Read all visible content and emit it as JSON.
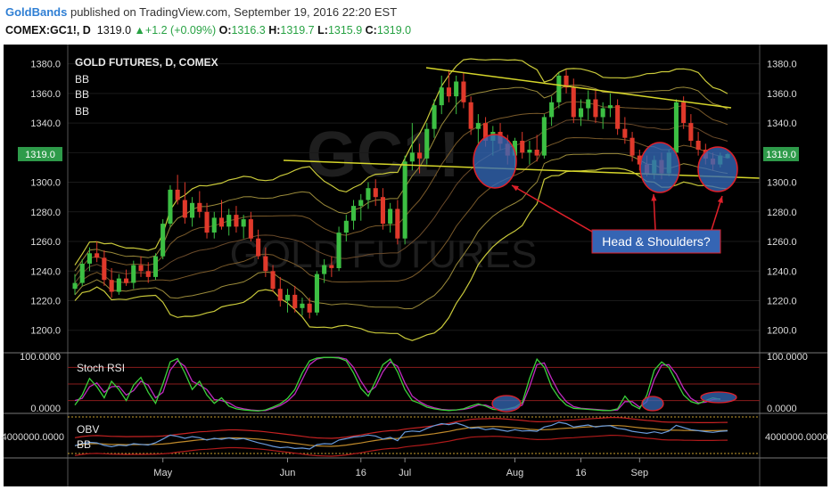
{
  "header": {
    "author": "GoldBands",
    "published": "published on TradingView.com, September 19, 2016 22:20 EST",
    "symbol": "COMEX:GC1!, D",
    "price": "1319.0",
    "change": "+1.2 (+0.09%)",
    "open_label": "O:",
    "open": "1316.3",
    "high_label": "H:",
    "high": "1319.7",
    "low_label": "L:",
    "low": "1315.9",
    "close_label": "C:",
    "close": "1319.0"
  },
  "chart_data": {
    "type": "candlestick",
    "title": "GOLD FUTURES, D, COMEX",
    "indicator_labels": [
      "BB",
      "BB",
      "BB"
    ],
    "watermark": [
      "GC1!",
      "GOLD FUTURES"
    ],
    "y_ticks": [
      1200,
      1220,
      1240,
      1260,
      1280,
      1300,
      1320,
      1340,
      1360,
      1380
    ],
    "ylim": [
      1186,
      1393
    ],
    "last_price_label": "1319.0",
    "x_ticks": [
      "May",
      "Jun",
      "16",
      "Jul",
      "Aug",
      "16",
      "Sep"
    ],
    "candles": [
      {
        "o": 1228,
        "h": 1238,
        "l": 1224,
        "c": 1232
      },
      {
        "o": 1232,
        "h": 1248,
        "l": 1230,
        "c": 1245
      },
      {
        "o": 1245,
        "h": 1256,
        "l": 1240,
        "c": 1252
      },
      {
        "o": 1252,
        "h": 1260,
        "l": 1246,
        "c": 1249
      },
      {
        "o": 1249,
        "h": 1254,
        "l": 1230,
        "c": 1234
      },
      {
        "o": 1234,
        "h": 1242,
        "l": 1222,
        "c": 1226
      },
      {
        "o": 1226,
        "h": 1238,
        "l": 1224,
        "c": 1235
      },
      {
        "o": 1235,
        "h": 1241,
        "l": 1230,
        "c": 1232
      },
      {
        "o": 1232,
        "h": 1247,
        "l": 1228,
        "c": 1244
      },
      {
        "o": 1244,
        "h": 1250,
        "l": 1236,
        "c": 1240
      },
      {
        "o": 1240,
        "h": 1246,
        "l": 1232,
        "c": 1236
      },
      {
        "o": 1236,
        "h": 1252,
        "l": 1234,
        "c": 1250
      },
      {
        "o": 1250,
        "h": 1275,
        "l": 1248,
        "c": 1272
      },
      {
        "o": 1272,
        "h": 1298,
        "l": 1270,
        "c": 1295
      },
      {
        "o": 1295,
        "h": 1305,
        "l": 1285,
        "c": 1288
      },
      {
        "o": 1288,
        "h": 1300,
        "l": 1272,
        "c": 1276
      },
      {
        "o": 1276,
        "h": 1290,
        "l": 1270,
        "c": 1286
      },
      {
        "o": 1286,
        "h": 1294,
        "l": 1276,
        "c": 1280
      },
      {
        "o": 1280,
        "h": 1286,
        "l": 1262,
        "c": 1266
      },
      {
        "o": 1266,
        "h": 1280,
        "l": 1262,
        "c": 1276
      },
      {
        "o": 1276,
        "h": 1288,
        "l": 1268,
        "c": 1270
      },
      {
        "o": 1270,
        "h": 1282,
        "l": 1264,
        "c": 1278
      },
      {
        "o": 1278,
        "h": 1284,
        "l": 1266,
        "c": 1270
      },
      {
        "o": 1270,
        "h": 1278,
        "l": 1262,
        "c": 1275
      },
      {
        "o": 1275,
        "h": 1280,
        "l": 1260,
        "c": 1262
      },
      {
        "o": 1262,
        "h": 1268,
        "l": 1248,
        "c": 1250
      },
      {
        "o": 1250,
        "h": 1256,
        "l": 1236,
        "c": 1240
      },
      {
        "o": 1240,
        "h": 1244,
        "l": 1226,
        "c": 1228
      },
      {
        "o": 1228,
        "h": 1236,
        "l": 1216,
        "c": 1220
      },
      {
        "o": 1220,
        "h": 1228,
        "l": 1212,
        "c": 1224
      },
      {
        "o": 1224,
        "h": 1230,
        "l": 1212,
        "c": 1215
      },
      {
        "o": 1215,
        "h": 1222,
        "l": 1210,
        "c": 1218
      },
      {
        "o": 1218,
        "h": 1222,
        "l": 1208,
        "c": 1212
      },
      {
        "o": 1212,
        "h": 1240,
        "l": 1210,
        "c": 1238
      },
      {
        "o": 1238,
        "h": 1248,
        "l": 1232,
        "c": 1244
      },
      {
        "o": 1244,
        "h": 1250,
        "l": 1236,
        "c": 1242
      },
      {
        "o": 1242,
        "h": 1270,
        "l": 1240,
        "c": 1266
      },
      {
        "o": 1266,
        "h": 1278,
        "l": 1260,
        "c": 1274
      },
      {
        "o": 1274,
        "h": 1288,
        "l": 1268,
        "c": 1284
      },
      {
        "o": 1284,
        "h": 1292,
        "l": 1274,
        "c": 1288
      },
      {
        "o": 1288,
        "h": 1300,
        "l": 1282,
        "c": 1296
      },
      {
        "o": 1296,
        "h": 1302,
        "l": 1284,
        "c": 1290
      },
      {
        "o": 1290,
        "h": 1296,
        "l": 1268,
        "c": 1272
      },
      {
        "o": 1272,
        "h": 1286,
        "l": 1266,
        "c": 1282
      },
      {
        "o": 1282,
        "h": 1288,
        "l": 1258,
        "c": 1262
      },
      {
        "o": 1262,
        "h": 1318,
        "l": 1258,
        "c": 1314
      },
      {
        "o": 1314,
        "h": 1340,
        "l": 1308,
        "c": 1320
      },
      {
        "o": 1320,
        "h": 1326,
        "l": 1306,
        "c": 1316
      },
      {
        "o": 1316,
        "h": 1340,
        "l": 1312,
        "c": 1336
      },
      {
        "o": 1336,
        "h": 1356,
        "l": 1330,
        "c": 1352
      },
      {
        "o": 1352,
        "h": 1372,
        "l": 1346,
        "c": 1364
      },
      {
        "o": 1364,
        "h": 1376,
        "l": 1354,
        "c": 1358
      },
      {
        "o": 1358,
        "h": 1372,
        "l": 1346,
        "c": 1368
      },
      {
        "o": 1368,
        "h": 1374,
        "l": 1350,
        "c": 1354
      },
      {
        "o": 1354,
        "h": 1358,
        "l": 1332,
        "c": 1336
      },
      {
        "o": 1336,
        "h": 1346,
        "l": 1326,
        "c": 1340
      },
      {
        "o": 1340,
        "h": 1344,
        "l": 1324,
        "c": 1328
      },
      {
        "o": 1328,
        "h": 1338,
        "l": 1318,
        "c": 1334
      },
      {
        "o": 1334,
        "h": 1340,
        "l": 1322,
        "c": 1326
      },
      {
        "o": 1326,
        "h": 1332,
        "l": 1312,
        "c": 1318
      },
      {
        "o": 1318,
        "h": 1330,
        "l": 1310,
        "c": 1328
      },
      {
        "o": 1328,
        "h": 1334,
        "l": 1316,
        "c": 1320
      },
      {
        "o": 1320,
        "h": 1328,
        "l": 1312,
        "c": 1322
      },
      {
        "o": 1322,
        "h": 1332,
        "l": 1314,
        "c": 1318
      },
      {
        "o": 1318,
        "h": 1346,
        "l": 1316,
        "c": 1344
      },
      {
        "o": 1344,
        "h": 1358,
        "l": 1338,
        "c": 1354
      },
      {
        "o": 1354,
        "h": 1374,
        "l": 1350,
        "c": 1372
      },
      {
        "o": 1372,
        "h": 1376,
        "l": 1360,
        "c": 1364
      },
      {
        "o": 1364,
        "h": 1370,
        "l": 1340,
        "c": 1344
      },
      {
        "o": 1344,
        "h": 1356,
        "l": 1338,
        "c": 1350
      },
      {
        "o": 1350,
        "h": 1362,
        "l": 1342,
        "c": 1356
      },
      {
        "o": 1356,
        "h": 1362,
        "l": 1340,
        "c": 1344
      },
      {
        "o": 1344,
        "h": 1354,
        "l": 1336,
        "c": 1350
      },
      {
        "o": 1350,
        "h": 1360,
        "l": 1344,
        "c": 1352
      },
      {
        "o": 1352,
        "h": 1356,
        "l": 1332,
        "c": 1336
      },
      {
        "o": 1336,
        "h": 1344,
        "l": 1326,
        "c": 1330
      },
      {
        "o": 1330,
        "h": 1334,
        "l": 1314,
        "c": 1318
      },
      {
        "o": 1318,
        "h": 1322,
        "l": 1308,
        "c": 1312
      },
      {
        "o": 1312,
        "h": 1318,
        "l": 1304,
        "c": 1306
      },
      {
        "o": 1306,
        "h": 1318,
        "l": 1302,
        "c": 1315
      },
      {
        "o": 1315,
        "h": 1320,
        "l": 1302,
        "c": 1306
      },
      {
        "o": 1306,
        "h": 1322,
        "l": 1304,
        "c": 1320
      },
      {
        "o": 1320,
        "h": 1356,
        "l": 1318,
        "c": 1354
      },
      {
        "o": 1354,
        "h": 1358,
        "l": 1336,
        "c": 1340
      },
      {
        "o": 1340,
        "h": 1346,
        "l": 1324,
        "c": 1328
      },
      {
        "o": 1328,
        "h": 1334,
        "l": 1318,
        "c": 1322
      },
      {
        "o": 1322,
        "h": 1326,
        "l": 1312,
        "c": 1316
      },
      {
        "o": 1316,
        "h": 1320,
        "l": 1308,
        "c": 1312
      },
      {
        "o": 1312,
        "h": 1320,
        "l": 1310,
        "c": 1318
      },
      {
        "o": 1316.3,
        "h": 1319.7,
        "l": 1315.9,
        "c": 1319.0
      }
    ],
    "annotation": "Head & Shoulders?",
    "stoch_rsi": {
      "label": "Stoch RSI",
      "y_ticks": [
        "100.0000",
        "0.0000"
      ],
      "k": [
        12,
        30,
        60,
        45,
        25,
        55,
        40,
        20,
        48,
        62,
        35,
        15,
        50,
        90,
        96,
        70,
        40,
        55,
        30,
        15,
        25,
        10,
        5,
        3,
        2,
        1,
        3,
        8,
        14,
        24,
        40,
        70,
        92,
        97,
        98,
        98,
        97,
        92,
        70,
        42,
        28,
        55,
        85,
        95,
        72,
        40,
        20,
        15,
        8,
        5,
        3,
        2,
        3,
        5,
        10,
        14,
        10,
        4,
        3,
        5,
        8,
        16,
        60,
        95,
        80,
        45,
        25,
        12,
        6,
        5,
        4,
        3,
        2,
        2,
        5,
        28,
        12,
        5,
        30,
        75,
        90,
        80,
        55,
        30,
        18,
        14,
        20,
        25,
        22
      ],
      "d": [
        20,
        24,
        45,
        52,
        35,
        45,
        46,
        30,
        38,
        55,
        48,
        25,
        35,
        75,
        92,
        82,
        55,
        48,
        40,
        22,
        20,
        16,
        8,
        5,
        3,
        2,
        2,
        6,
        11,
        19,
        32,
        58,
        85,
        95,
        98,
        98,
        98,
        95,
        80,
        55,
        35,
        45,
        72,
        90,
        82,
        52,
        28,
        18,
        11,
        7,
        4,
        3,
        3,
        4,
        7,
        12,
        12,
        7,
        4,
        4,
        6,
        12,
        45,
        85,
        88,
        60,
        35,
        18,
        9,
        6,
        5,
        4,
        3,
        2,
        3,
        18,
        18,
        8,
        18,
        58,
        84,
        85,
        68,
        42,
        24,
        16,
        17,
        22,
        23
      ]
    },
    "obv": {
      "label": "OBV",
      "bb_label": "BB",
      "y_tick": "4000000.0000"
    }
  }
}
